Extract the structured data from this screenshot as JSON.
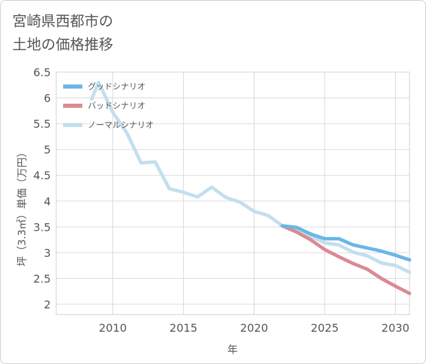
{
  "title_lines": [
    "宮崎県西都市の",
    "土地の価格推移"
  ],
  "chart_data": {
    "type": "line",
    "xlabel": "年",
    "ylabel": "坪（3.3㎡）単価（万円）",
    "xlim": [
      2006,
      2031
    ],
    "ylim": [
      1.8,
      6.5
    ],
    "x_ticks": [
      2010,
      2015,
      2020,
      2025,
      2030
    ],
    "y_ticks": [
      2,
      2.5,
      3,
      3.5,
      4,
      4.5,
      5,
      5.5,
      6,
      6.5
    ],
    "grid": true,
    "legend_position": "top-left",
    "series": [
      {
        "name": "グッドシナリオ",
        "color": "#6bb6e6",
        "x": [
          2022,
          2023,
          2024,
          2025,
          2026,
          2027,
          2028,
          2029,
          2030,
          2031
        ],
        "values": [
          3.52,
          3.49,
          3.36,
          3.27,
          3.27,
          3.15,
          3.09,
          3.03,
          2.95,
          2.86
        ]
      },
      {
        "name": "バッドシナリオ",
        "color": "#d98a92",
        "x": [
          2022,
          2023,
          2024,
          2025,
          2026,
          2027,
          2028,
          2029,
          2030,
          2031
        ],
        "values": [
          3.52,
          3.4,
          3.25,
          3.06,
          2.92,
          2.79,
          2.68,
          2.5,
          2.35,
          2.21
        ]
      },
      {
        "name": "ノーマルシナリオ",
        "color": "#c3dfee",
        "x": [
          2008.5,
          2009,
          2010,
          2011,
          2012,
          2013,
          2014,
          2015,
          2016,
          2017,
          2018,
          2019,
          2020,
          2021,
          2022,
          2023,
          2024,
          2025,
          2026,
          2027,
          2028,
          2029,
          2030,
          2031
        ],
        "values": [
          5.98,
          6.3,
          5.72,
          5.32,
          4.74,
          4.76,
          4.24,
          4.17,
          4.08,
          4.27,
          4.07,
          3.98,
          3.8,
          3.72,
          3.52,
          3.43,
          3.32,
          3.19,
          3.15,
          3.01,
          2.94,
          2.8,
          2.75,
          2.62
        ]
      }
    ]
  }
}
